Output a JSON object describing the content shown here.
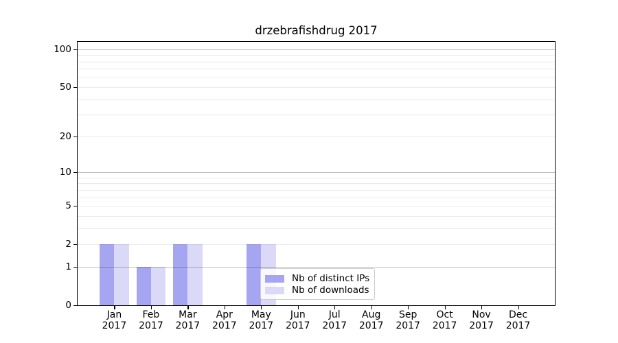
{
  "title": "drzebrafishdrug 2017",
  "chart_data": {
    "type": "bar",
    "title": "drzebrafishdrug 2017",
    "categories": [
      "Jan",
      "Feb",
      "Mar",
      "Apr",
      "May",
      "Jun",
      "Jul",
      "Aug",
      "Sep",
      "Oct",
      "Nov",
      "Dec"
    ],
    "category_year": "2017",
    "series": [
      {
        "name": "Nb of distinct IPs",
        "color": "#a5a5f2",
        "values": [
          2,
          1,
          2,
          0,
          2,
          0,
          0,
          0,
          0,
          0,
          0,
          0
        ]
      },
      {
        "name": "Nb of downloads",
        "color": "#dadaf8",
        "values": [
          2,
          1,
          2,
          0,
          2,
          0,
          0,
          0,
          0,
          0,
          0,
          0
        ]
      }
    ],
    "yticks": [
      0,
      1,
      2,
      5,
      10,
      20,
      50,
      100
    ],
    "ylim": [
      0,
      114
    ],
    "yscale": "log10(1+x)",
    "grid": "horizontal",
    "legend_position": "lower-right-inside"
  }
}
